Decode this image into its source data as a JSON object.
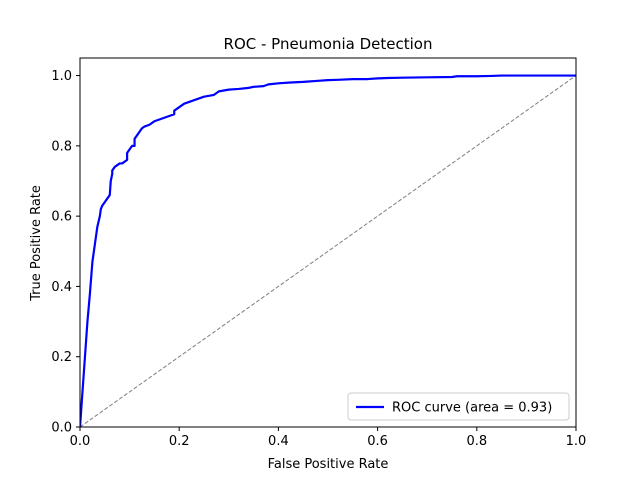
{
  "chart_data": {
    "type": "line",
    "title": "ROC - Pneumonia Detection",
    "xlabel": "False Positive Rate",
    "ylabel": "True Positive Rate",
    "xlim": [
      0,
      1
    ],
    "ylim": [
      0,
      1.05
    ],
    "xticks": [
      "0.0",
      "0.2",
      "0.4",
      "0.6",
      "0.8",
      "1.0"
    ],
    "yticks": [
      "0.0",
      "0.2",
      "0.4",
      "0.6",
      "0.8",
      "1.0"
    ],
    "grid": false,
    "legend_position": "lower-right",
    "series": [
      {
        "name": "ROC curve (area = 0.93)",
        "color": "#0000ff",
        "style": "solid",
        "x": [
          0,
          0.005,
          0.01,
          0.015,
          0.02,
          0.025,
          0.03,
          0.035,
          0.04,
          0.042,
          0.045,
          0.05,
          0.055,
          0.06,
          0.062,
          0.065,
          0.065,
          0.07,
          0.075,
          0.08,
          0.085,
          0.09,
          0.095,
          0.095,
          0.1,
          0.105,
          0.11,
          0.11,
          0.115,
          0.12,
          0.125,
          0.13,
          0.14,
          0.15,
          0.16,
          0.17,
          0.18,
          0.19,
          0.19,
          0.2,
          0.21,
          0.22,
          0.23,
          0.24,
          0.25,
          0.27,
          0.28,
          0.3,
          0.32,
          0.34,
          0.35,
          0.37,
          0.38,
          0.4,
          0.42,
          0.45,
          0.48,
          0.5,
          0.52,
          0.55,
          0.58,
          0.6,
          0.62,
          0.65,
          0.7,
          0.75,
          0.76,
          0.8,
          0.83,
          0.85,
          0.9,
          0.95,
          1.0
        ],
        "y": [
          0,
          0.1,
          0.2,
          0.3,
          0.38,
          0.47,
          0.52,
          0.57,
          0.6,
          0.62,
          0.63,
          0.64,
          0.65,
          0.66,
          0.7,
          0.72,
          0.73,
          0.74,
          0.745,
          0.75,
          0.75,
          0.755,
          0.76,
          0.78,
          0.79,
          0.8,
          0.8,
          0.82,
          0.83,
          0.84,
          0.85,
          0.855,
          0.86,
          0.87,
          0.875,
          0.88,
          0.885,
          0.89,
          0.9,
          0.91,
          0.92,
          0.925,
          0.93,
          0.935,
          0.94,
          0.945,
          0.955,
          0.96,
          0.962,
          0.965,
          0.968,
          0.97,
          0.975,
          0.978,
          0.98,
          0.982,
          0.985,
          0.987,
          0.988,
          0.99,
          0.99,
          0.992,
          0.993,
          0.994,
          0.995,
          0.996,
          0.998,
          0.998,
          0.999,
          1.0,
          1.0,
          1.0,
          1.0
        ]
      },
      {
        "name": "",
        "color": "#808080",
        "style": "dashed",
        "x": [
          0,
          1
        ],
        "y": [
          0,
          1
        ]
      }
    ]
  }
}
